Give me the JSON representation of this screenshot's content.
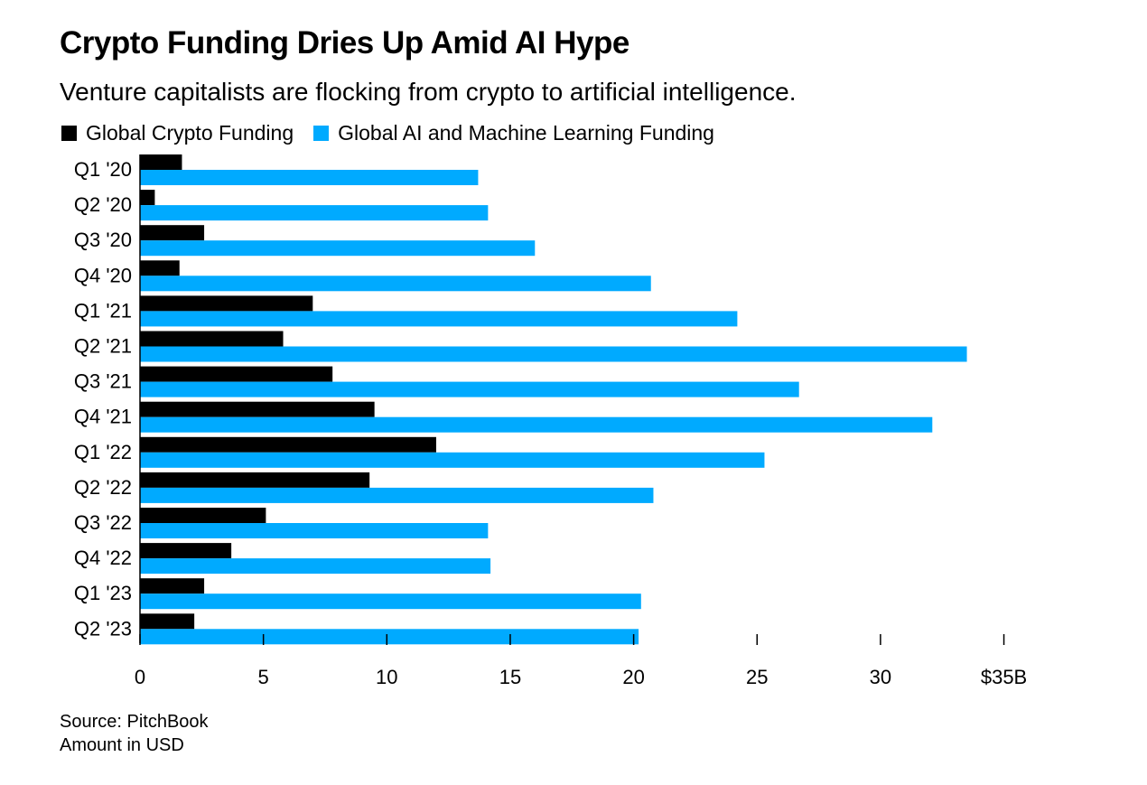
{
  "header": {
    "title": "Crypto Funding Dries Up Amid AI Hype",
    "subtitle": "Venture capitalists are flocking from crypto to artificial intelligence."
  },
  "legend": [
    {
      "label": "Global Crypto Funding",
      "color": "#000000"
    },
    {
      "label": "Global AI and Machine Learning Funding",
      "color": "#00aaff"
    }
  ],
  "footer": {
    "source": "Source: PitchBook",
    "unit": "Amount in USD"
  },
  "chart_data": {
    "type": "bar",
    "orientation": "horizontal",
    "categories": [
      "Q1 '20",
      "Q2 '20",
      "Q3 '20",
      "Q4 '20",
      "Q1 '21",
      "Q2 '21",
      "Q3 '21",
      "Q4 '21",
      "Q1 '22",
      "Q2 '22",
      "Q3 '22",
      "Q4 '22",
      "Q1 '23",
      "Q2 '23"
    ],
    "series": [
      {
        "name": "Global Crypto Funding",
        "color": "#000000",
        "values": [
          1.7,
          0.6,
          2.6,
          1.6,
          7.0,
          5.8,
          7.8,
          9.5,
          12.0,
          9.3,
          5.1,
          3.7,
          2.6,
          2.2
        ]
      },
      {
        "name": "Global AI and Machine Learning Funding",
        "color": "#00aaff",
        "values": [
          13.7,
          14.1,
          16.0,
          20.7,
          24.2,
          33.5,
          26.7,
          32.1,
          25.3,
          20.8,
          14.1,
          14.2,
          20.3,
          20.2
        ]
      }
    ],
    "x_ticks": [
      0,
      5,
      10,
      15,
      20,
      25,
      30,
      35
    ],
    "x_tick_labels": [
      "0",
      "5",
      "10",
      "15",
      "20",
      "25",
      "30",
      "$35B"
    ],
    "xlim": [
      0,
      35
    ],
    "grid": false,
    "legend_position": "top-left"
  }
}
